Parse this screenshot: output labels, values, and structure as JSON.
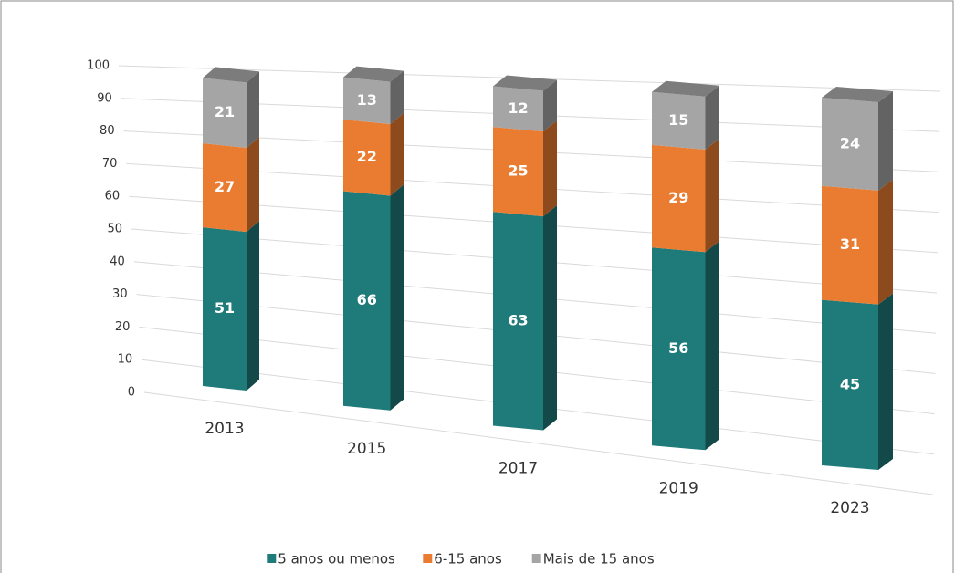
{
  "chart_data": {
    "type": "bar3d-stacked",
    "categories": [
      "2013",
      "2015",
      "2017",
      "2019",
      "2023"
    ],
    "series": [
      {
        "name": "5 anos ou menos",
        "color": "#1f7a7a",
        "values": [
          51,
          66,
          63,
          56,
          45
        ]
      },
      {
        "name": "6-15 anos",
        "color": "#e97c30",
        "values": [
          27,
          22,
          25,
          29,
          31
        ]
      },
      {
        "name": "Mais de 15 anos",
        "color": "#a5a5a5",
        "values": [
          21,
          13,
          12,
          15,
          24
        ]
      }
    ],
    "ylim": [
      0,
      100
    ],
    "yticks": [
      0,
      10,
      20,
      30,
      40,
      50,
      60,
      70,
      80,
      90,
      100
    ],
    "grid": true
  }
}
